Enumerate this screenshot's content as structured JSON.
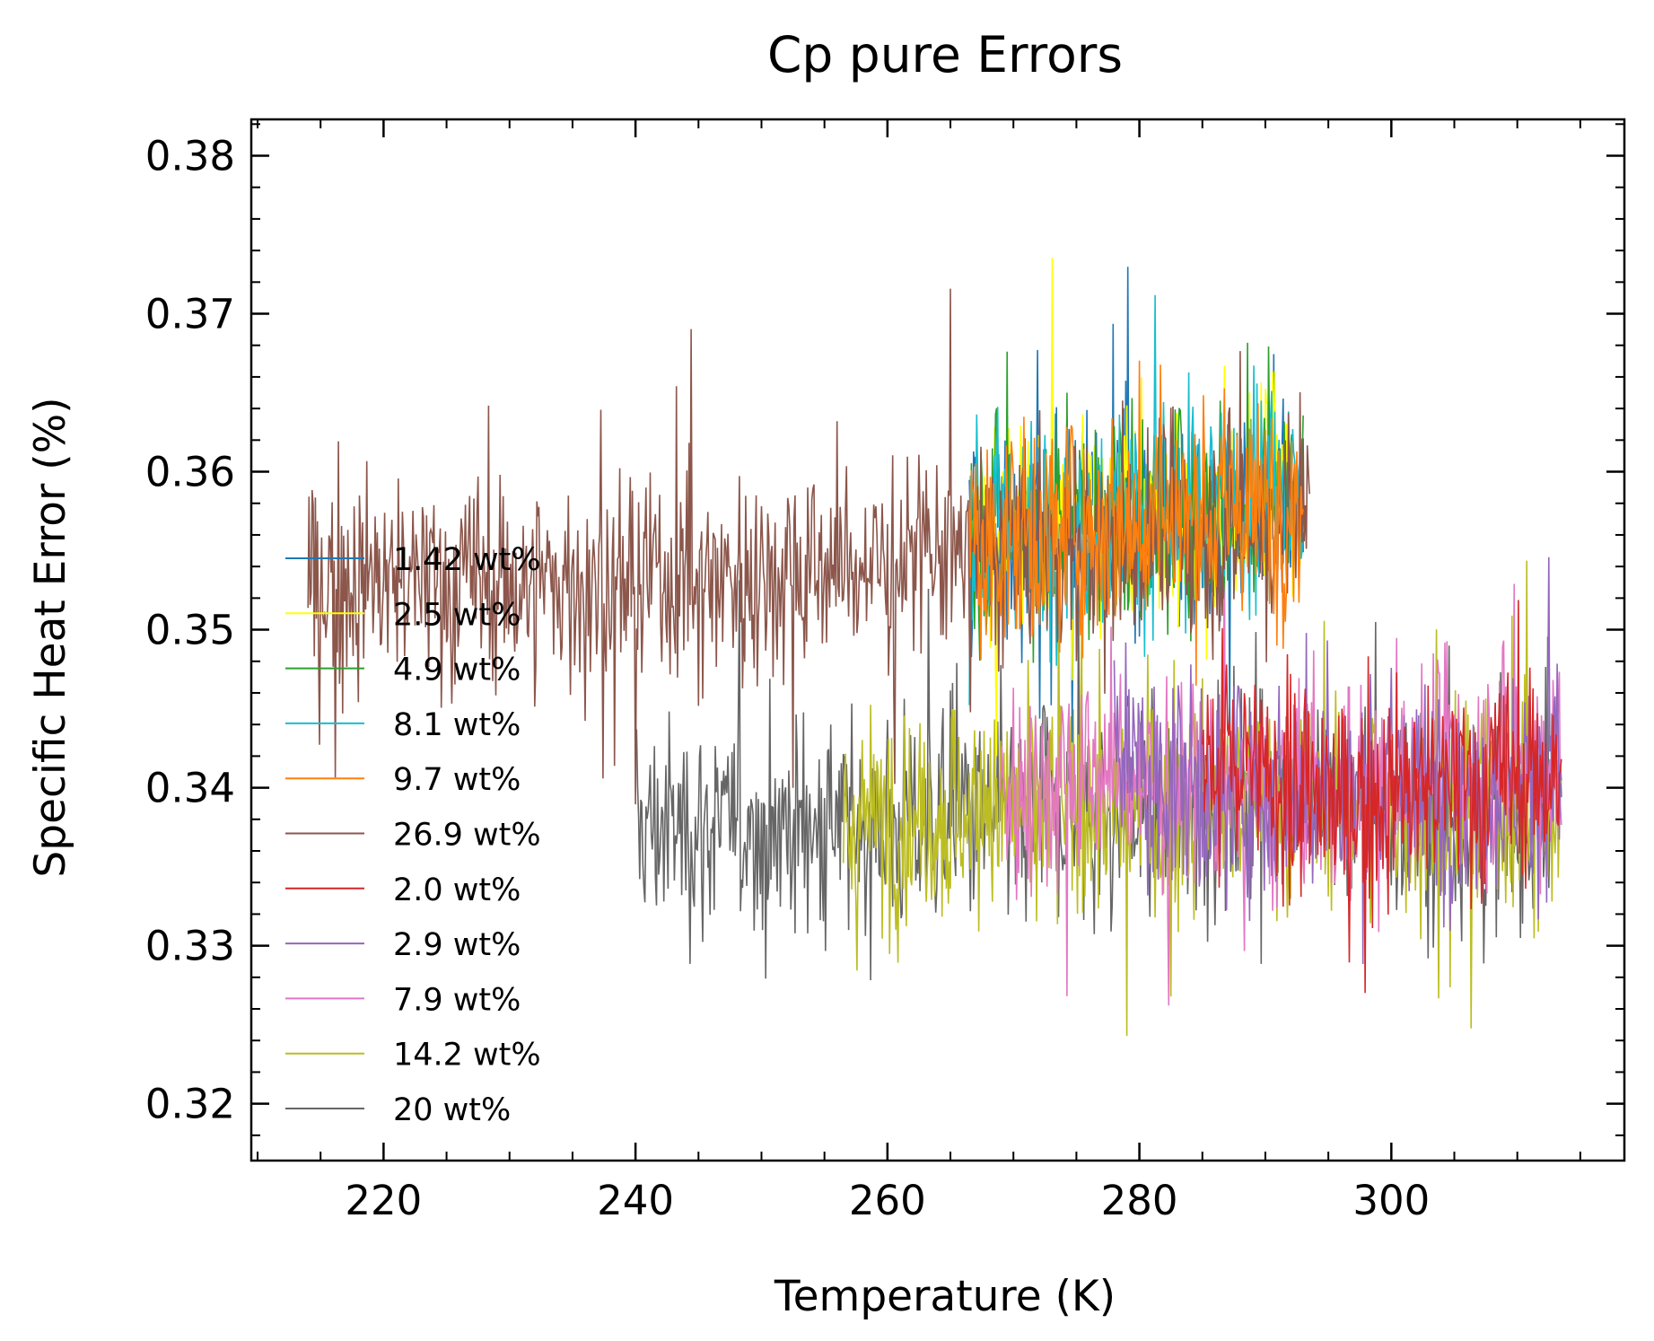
{
  "chart_data": {
    "type": "line",
    "title": "Cp pure Errors",
    "xlabel": "Temperature (K)",
    "ylabel": "Specific Heat Error (%)",
    "xlim": [
      209.5,
      318.5
    ],
    "ylim": [
      0.3164,
      0.3823
    ],
    "x_ticks": [
      220,
      240,
      260,
      280,
      300
    ],
    "x_tick_labels": [
      "220",
      "240",
      "260",
      "280",
      "300"
    ],
    "y_ticks": [
      0.32,
      0.33,
      0.34,
      0.35,
      0.36,
      0.37,
      0.38
    ],
    "y_tick_labels": [
      "0.32",
      "0.33",
      "0.34",
      "0.35",
      "0.36",
      "0.37",
      "0.38"
    ],
    "grid": false,
    "legend_position": "center-left",
    "series": [
      {
        "name": "1.42 wt%",
        "color": "#1f77b4",
        "x_range": [
          266.5,
          293.0
        ],
        "values": [
          0.356,
          0.357,
          0.3575,
          0.3585
        ]
      },
      {
        "name": "2.5 wt%",
        "color": "#ffff00",
        "x_range": [
          266.5,
          293.0
        ],
        "values": [
          0.3558,
          0.3568,
          0.3575,
          0.3583
        ]
      },
      {
        "name": "4.9 wt%",
        "color": "#2ca02c",
        "x_range": [
          266.5,
          293.0
        ],
        "values": [
          0.356,
          0.3568,
          0.3576,
          0.3584
        ]
      },
      {
        "name": "8.1 wt%",
        "color": "#17becf",
        "x_range": [
          266.5,
          293.0
        ],
        "values": [
          0.356,
          0.357,
          0.3577,
          0.3585
        ]
      },
      {
        "name": "9.7 wt%",
        "color": "#ff7f0e",
        "x_range": [
          266.5,
          293.0
        ],
        "values": [
          0.3555,
          0.3565,
          0.3572,
          0.358
        ]
      },
      {
        "name": "26.9 wt%",
        "color": "#8c564b",
        "x_range": [
          214.0,
          293.5
        ],
        "values": [
          0.353,
          0.353,
          0.3528,
          0.3535,
          0.3542,
          0.355,
          0.3558,
          0.3568
        ]
      },
      {
        "name": "2.0 wt%",
        "color": "#d62728",
        "x_range": [
          285.0,
          313.5
        ],
        "values": [
          0.342,
          0.339,
          0.34,
          0.341
        ]
      },
      {
        "name": "2.9 wt%",
        "color": "#9467bd",
        "x_range": [
          278.0,
          313.5
        ],
        "values": [
          0.341,
          0.34,
          0.3395,
          0.34,
          0.341
        ]
      },
      {
        "name": "7.9 wt%",
        "color": "#e377c2",
        "x_range": [
          269.0,
          313.5
        ],
        "values": [
          0.34,
          0.341,
          0.3395,
          0.34,
          0.341,
          0.342
        ]
      },
      {
        "name": "14.2 wt%",
        "color": "#bcbd22",
        "x_range": [
          256.5,
          313.5
        ],
        "values": [
          0.338,
          0.3385,
          0.339,
          0.3395,
          0.339,
          0.3385
        ]
      },
      {
        "name": "20 wt%",
        "color": "#666666",
        "x_range": [
          240.0,
          313.5
        ],
        "values": [
          0.3375,
          0.3375,
          0.3378,
          0.338,
          0.3385,
          0.34,
          0.3375,
          0.3378
        ]
      }
    ]
  }
}
